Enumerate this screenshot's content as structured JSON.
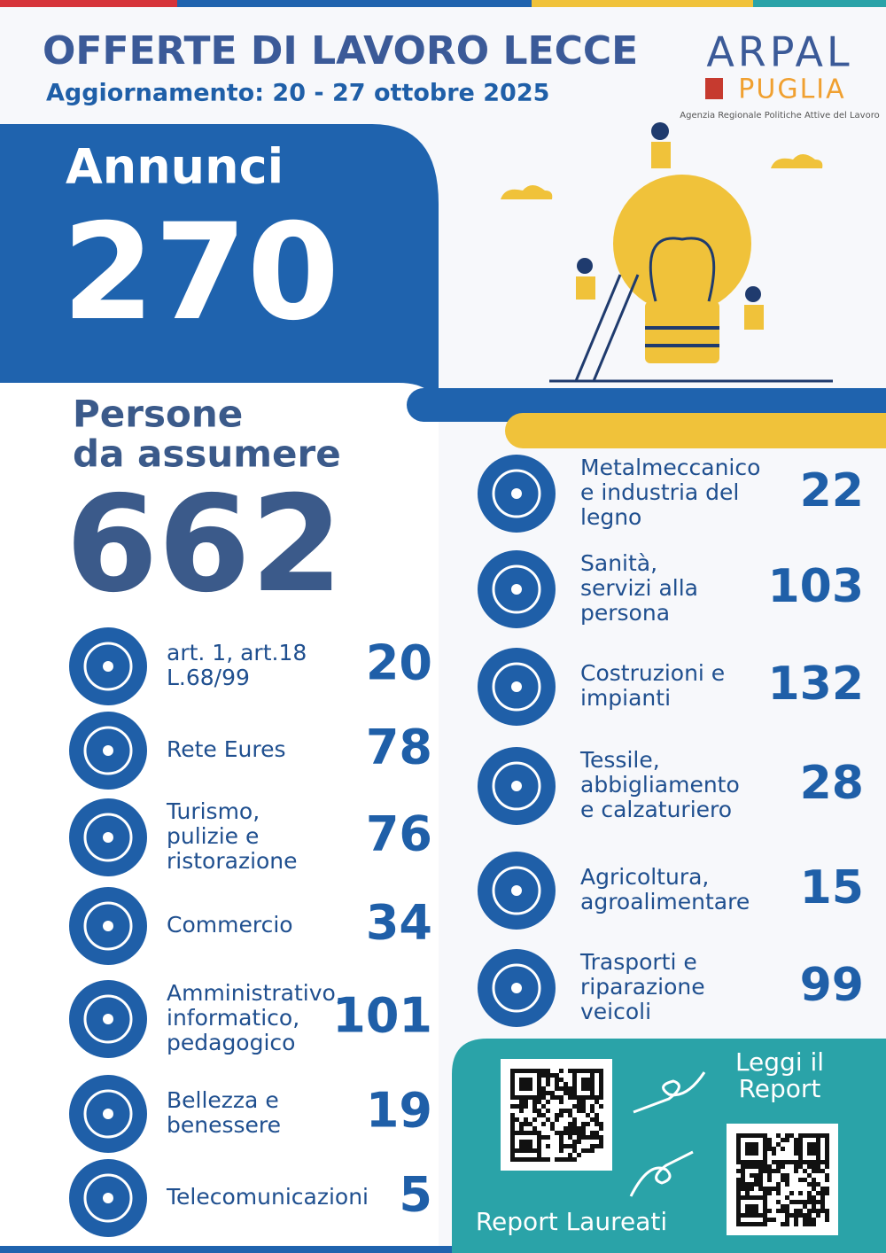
{
  "header": {
    "title": "OFFERTE DI LAVORO LECCE",
    "subtitle": "Aggiornamento: 20 - 27 ottobre 2025"
  },
  "logo": {
    "name": "ARPAL",
    "region": "PUGLIA",
    "tagline": "Agenzia Regionale Politiche Attive del Lavoro"
  },
  "ads": {
    "label": "Annunci",
    "value": 270
  },
  "hires": {
    "label": [
      "Persone",
      "da assumere"
    ],
    "value": 662
  },
  "sectors_left": [
    {
      "label": [
        "art. 1, art.18",
        "L.68/99"
      ],
      "value": 20
    },
    {
      "label": [
        "Rete Eures"
      ],
      "value": 78
    },
    {
      "label": [
        "Turismo,",
        "pulizie e",
        "ristorazione"
      ],
      "value": 76
    },
    {
      "label": [
        "Commercio"
      ],
      "value": 34
    },
    {
      "label": [
        "Amministrativo,",
        "informatico,",
        "pedagogico"
      ],
      "value": 101
    },
    {
      "label": [
        "Bellezza e",
        "benessere"
      ],
      "value": 19
    },
    {
      "label": [
        "Telecomunicazioni"
      ],
      "value": 5
    }
  ],
  "sectors_right": [
    {
      "label": [
        "Metalmeccanico",
        "e industria del",
        "legno"
      ],
      "value": 22
    },
    {
      "label": [
        "Sanità,",
        "servizi alla",
        "persona"
      ],
      "value": 103
    },
    {
      "label": [
        "Costruzioni e",
        "impianti"
      ],
      "value": 132
    },
    {
      "label": [
        "Tessile,",
        "abbigliamento",
        "e calzaturiero"
      ],
      "value": 28
    },
    {
      "label": [
        "Agricoltura,",
        "agroalimentare"
      ],
      "value": 15
    },
    {
      "label": [
        "Trasporti e",
        "riparazione",
        "veicoli"
      ],
      "value": 99
    }
  ],
  "reports": {
    "read": [
      "Leggi il",
      "Report"
    ],
    "graduates": "Report Laureati"
  }
}
